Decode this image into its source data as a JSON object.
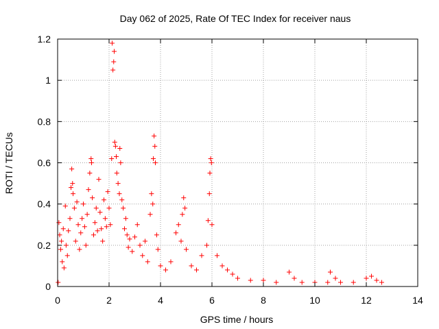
{
  "chart_data": {
    "type": "scatter",
    "title": "Day 062 of 2025, Rate Of TEC Index for receiver naus",
    "xlabel": "GPS time / hours",
    "ylabel": "ROTI / TECUs",
    "xlim": [
      0,
      14
    ],
    "ylim": [
      0,
      1.2
    ],
    "xticks": [
      0,
      2,
      4,
      6,
      8,
      10,
      12,
      14
    ],
    "yticks": [
      0,
      0.2,
      0.4,
      0.6,
      0.8,
      1,
      1.2
    ],
    "xtick_labels": [
      "0",
      "2",
      "4",
      "6",
      "8",
      "10",
      "12",
      "14"
    ],
    "ytick_labels": [
      "0",
      "0.2",
      "0.4",
      "0.6",
      "0.8",
      "1",
      "1.2"
    ],
    "grid": true,
    "marker": "+",
    "color": "#ff0000",
    "series": [
      {
        "name": "ROTI",
        "points": [
          [
            0.02,
            0.02
          ],
          [
            0.05,
            0.31
          ],
          [
            0.08,
            0.25
          ],
          [
            0.12,
            0.18
          ],
          [
            0.15,
            0.22
          ],
          [
            0.18,
            0.12
          ],
          [
            0.22,
            0.28
          ],
          [
            0.25,
            0.09
          ],
          [
            0.3,
            0.39
          ],
          [
            0.33,
            0.2
          ],
          [
            0.38,
            0.15
          ],
          [
            0.42,
            0.27
          ],
          [
            0.48,
            0.33
          ],
          [
            0.52,
            0.48
          ],
          [
            0.55,
            0.57
          ],
          [
            0.58,
            0.5
          ],
          [
            0.6,
            0.45
          ],
          [
            0.65,
            0.38
          ],
          [
            0.7,
            0.22
          ],
          [
            0.75,
            0.41
          ],
          [
            0.8,
            0.3
          ],
          [
            0.85,
            0.18
          ],
          [
            0.9,
            0.26
          ],
          [
            0.95,
            0.33
          ],
          [
            1.0,
            0.4
          ],
          [
            1.05,
            0.29
          ],
          [
            1.1,
            0.2
          ],
          [
            1.15,
            0.35
          ],
          [
            1.2,
            0.47
          ],
          [
            1.25,
            0.55
          ],
          [
            1.3,
            0.62
          ],
          [
            1.32,
            0.6
          ],
          [
            1.35,
            0.43
          ],
          [
            1.4,
            0.25
          ],
          [
            1.45,
            0.31
          ],
          [
            1.5,
            0.38
          ],
          [
            1.55,
            0.27
          ],
          [
            1.6,
            0.52
          ],
          [
            1.65,
            0.36
          ],
          [
            1.7,
            0.28
          ],
          [
            1.75,
            0.22
          ],
          [
            1.8,
            0.42
          ],
          [
            1.85,
            0.33
          ],
          [
            1.9,
            0.29
          ],
          [
            1.95,
            0.46
          ],
          [
            2.0,
            0.38
          ],
          [
            2.05,
            0.3
          ],
          [
            2.1,
            0.62
          ],
          [
            2.12,
            1.18
          ],
          [
            2.15,
            1.05
          ],
          [
            2.18,
            1.09
          ],
          [
            2.2,
            1.14
          ],
          [
            2.22,
            0.7
          ],
          [
            2.25,
            0.68
          ],
          [
            2.28,
            0.63
          ],
          [
            2.3,
            0.55
          ],
          [
            2.35,
            0.5
          ],
          [
            2.4,
            0.45
          ],
          [
            2.42,
            0.67
          ],
          [
            2.45,
            0.6
          ],
          [
            2.5,
            0.42
          ],
          [
            2.55,
            0.38
          ],
          [
            2.6,
            0.28
          ],
          [
            2.65,
            0.33
          ],
          [
            2.7,
            0.25
          ],
          [
            2.75,
            0.19
          ],
          [
            2.8,
            0.23
          ],
          [
            2.9,
            0.17
          ],
          [
            3.0,
            0.24
          ],
          [
            3.1,
            0.3
          ],
          [
            3.2,
            0.2
          ],
          [
            3.3,
            0.15
          ],
          [
            3.4,
            0.22
          ],
          [
            3.5,
            0.12
          ],
          [
            3.6,
            0.35
          ],
          [
            3.65,
            0.45
          ],
          [
            3.7,
            0.4
          ],
          [
            3.72,
            0.62
          ],
          [
            3.75,
            0.73
          ],
          [
            3.78,
            0.68
          ],
          [
            3.8,
            0.6
          ],
          [
            3.85,
            0.25
          ],
          [
            3.9,
            0.18
          ],
          [
            4.0,
            0.1
          ],
          [
            4.2,
            0.08
          ],
          [
            4.4,
            0.12
          ],
          [
            4.6,
            0.26
          ],
          [
            4.7,
            0.3
          ],
          [
            4.8,
            0.22
          ],
          [
            4.85,
            0.35
          ],
          [
            4.9,
            0.43
          ],
          [
            4.95,
            0.38
          ],
          [
            5.0,
            0.18
          ],
          [
            5.2,
            0.1
          ],
          [
            5.4,
            0.08
          ],
          [
            5.6,
            0.15
          ],
          [
            5.8,
            0.2
          ],
          [
            5.85,
            0.32
          ],
          [
            5.9,
            0.45
          ],
          [
            5.92,
            0.55
          ],
          [
            5.95,
            0.62
          ],
          [
            5.98,
            0.6
          ],
          [
            6.0,
            0.3
          ],
          [
            6.2,
            0.15
          ],
          [
            6.4,
            0.1
          ],
          [
            6.6,
            0.08
          ],
          [
            6.8,
            0.06
          ],
          [
            7.0,
            0.04
          ],
          [
            7.5,
            0.03
          ],
          [
            8.0,
            0.03
          ],
          [
            8.5,
            0.02
          ],
          [
            9.0,
            0.07
          ],
          [
            9.2,
            0.04
          ],
          [
            9.5,
            0.02
          ],
          [
            10.0,
            0.02
          ],
          [
            10.5,
            0.02
          ],
          [
            10.6,
            0.07
          ],
          [
            10.8,
            0.04
          ],
          [
            11.0,
            0.02
          ],
          [
            11.5,
            0.02
          ],
          [
            12.0,
            0.04
          ],
          [
            12.2,
            0.05
          ],
          [
            12.4,
            0.03
          ],
          [
            12.6,
            0.02
          ]
        ]
      }
    ]
  }
}
